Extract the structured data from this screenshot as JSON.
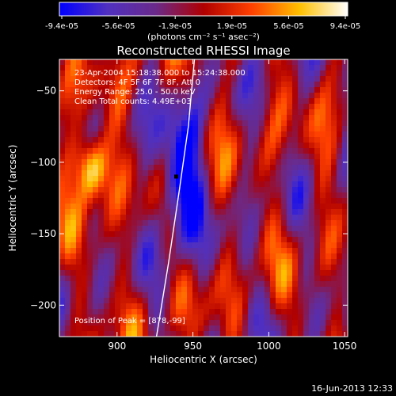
{
  "colorbar": {
    "ticks": [
      "-9.4e-05",
      "-5.6e-05",
      "-1.9e-05",
      "1.9e-05",
      "5.6e-05",
      "9.4e-05"
    ],
    "unit_label": "(photons cm⁻² s⁻¹ asec⁻²)",
    "stops": [
      "#0000ff",
      "#5030c0",
      "#6a2a8a",
      "#b00000",
      "#ff4000",
      "#ffc000",
      "#ffffff"
    ]
  },
  "chart_data": {
    "type": "heatmap",
    "title": "Reconstructed RHESSI Image",
    "xlabel": "Heliocentric X (arcsec)",
    "ylabel": "Heliocentric Y (arcsec)",
    "xlim": [
      862,
      1052
    ],
    "ylim": [
      -222,
      -28
    ],
    "xticks": [
      900,
      950,
      1000,
      1050
    ],
    "yticks": [
      -50,
      -100,
      -150,
      -200
    ],
    "grid": false,
    "annotations": [
      "23-Apr-2004 15:18:38.000 to 15:24:38.000",
      "Detectors: 4F 5F 6F 7F 8F, Att 0",
      "Energy Range: 25.0 - 50.0 keV",
      "Clean     Total counts: 4.49E+03",
      "Position of Peak = [878,-99]"
    ],
    "peak": {
      "x": 878,
      "y": -99
    },
    "marker": {
      "x": 939,
      "y": -110
    },
    "limb_curve": [
      [
        926,
        -222
      ],
      [
        934,
        -170
      ],
      [
        941,
        -120
      ],
      [
        947,
        -75
      ],
      [
        951,
        -28
      ]
    ]
  },
  "footer": {
    "timestamp": "16-Jun-2013 12:33"
  }
}
